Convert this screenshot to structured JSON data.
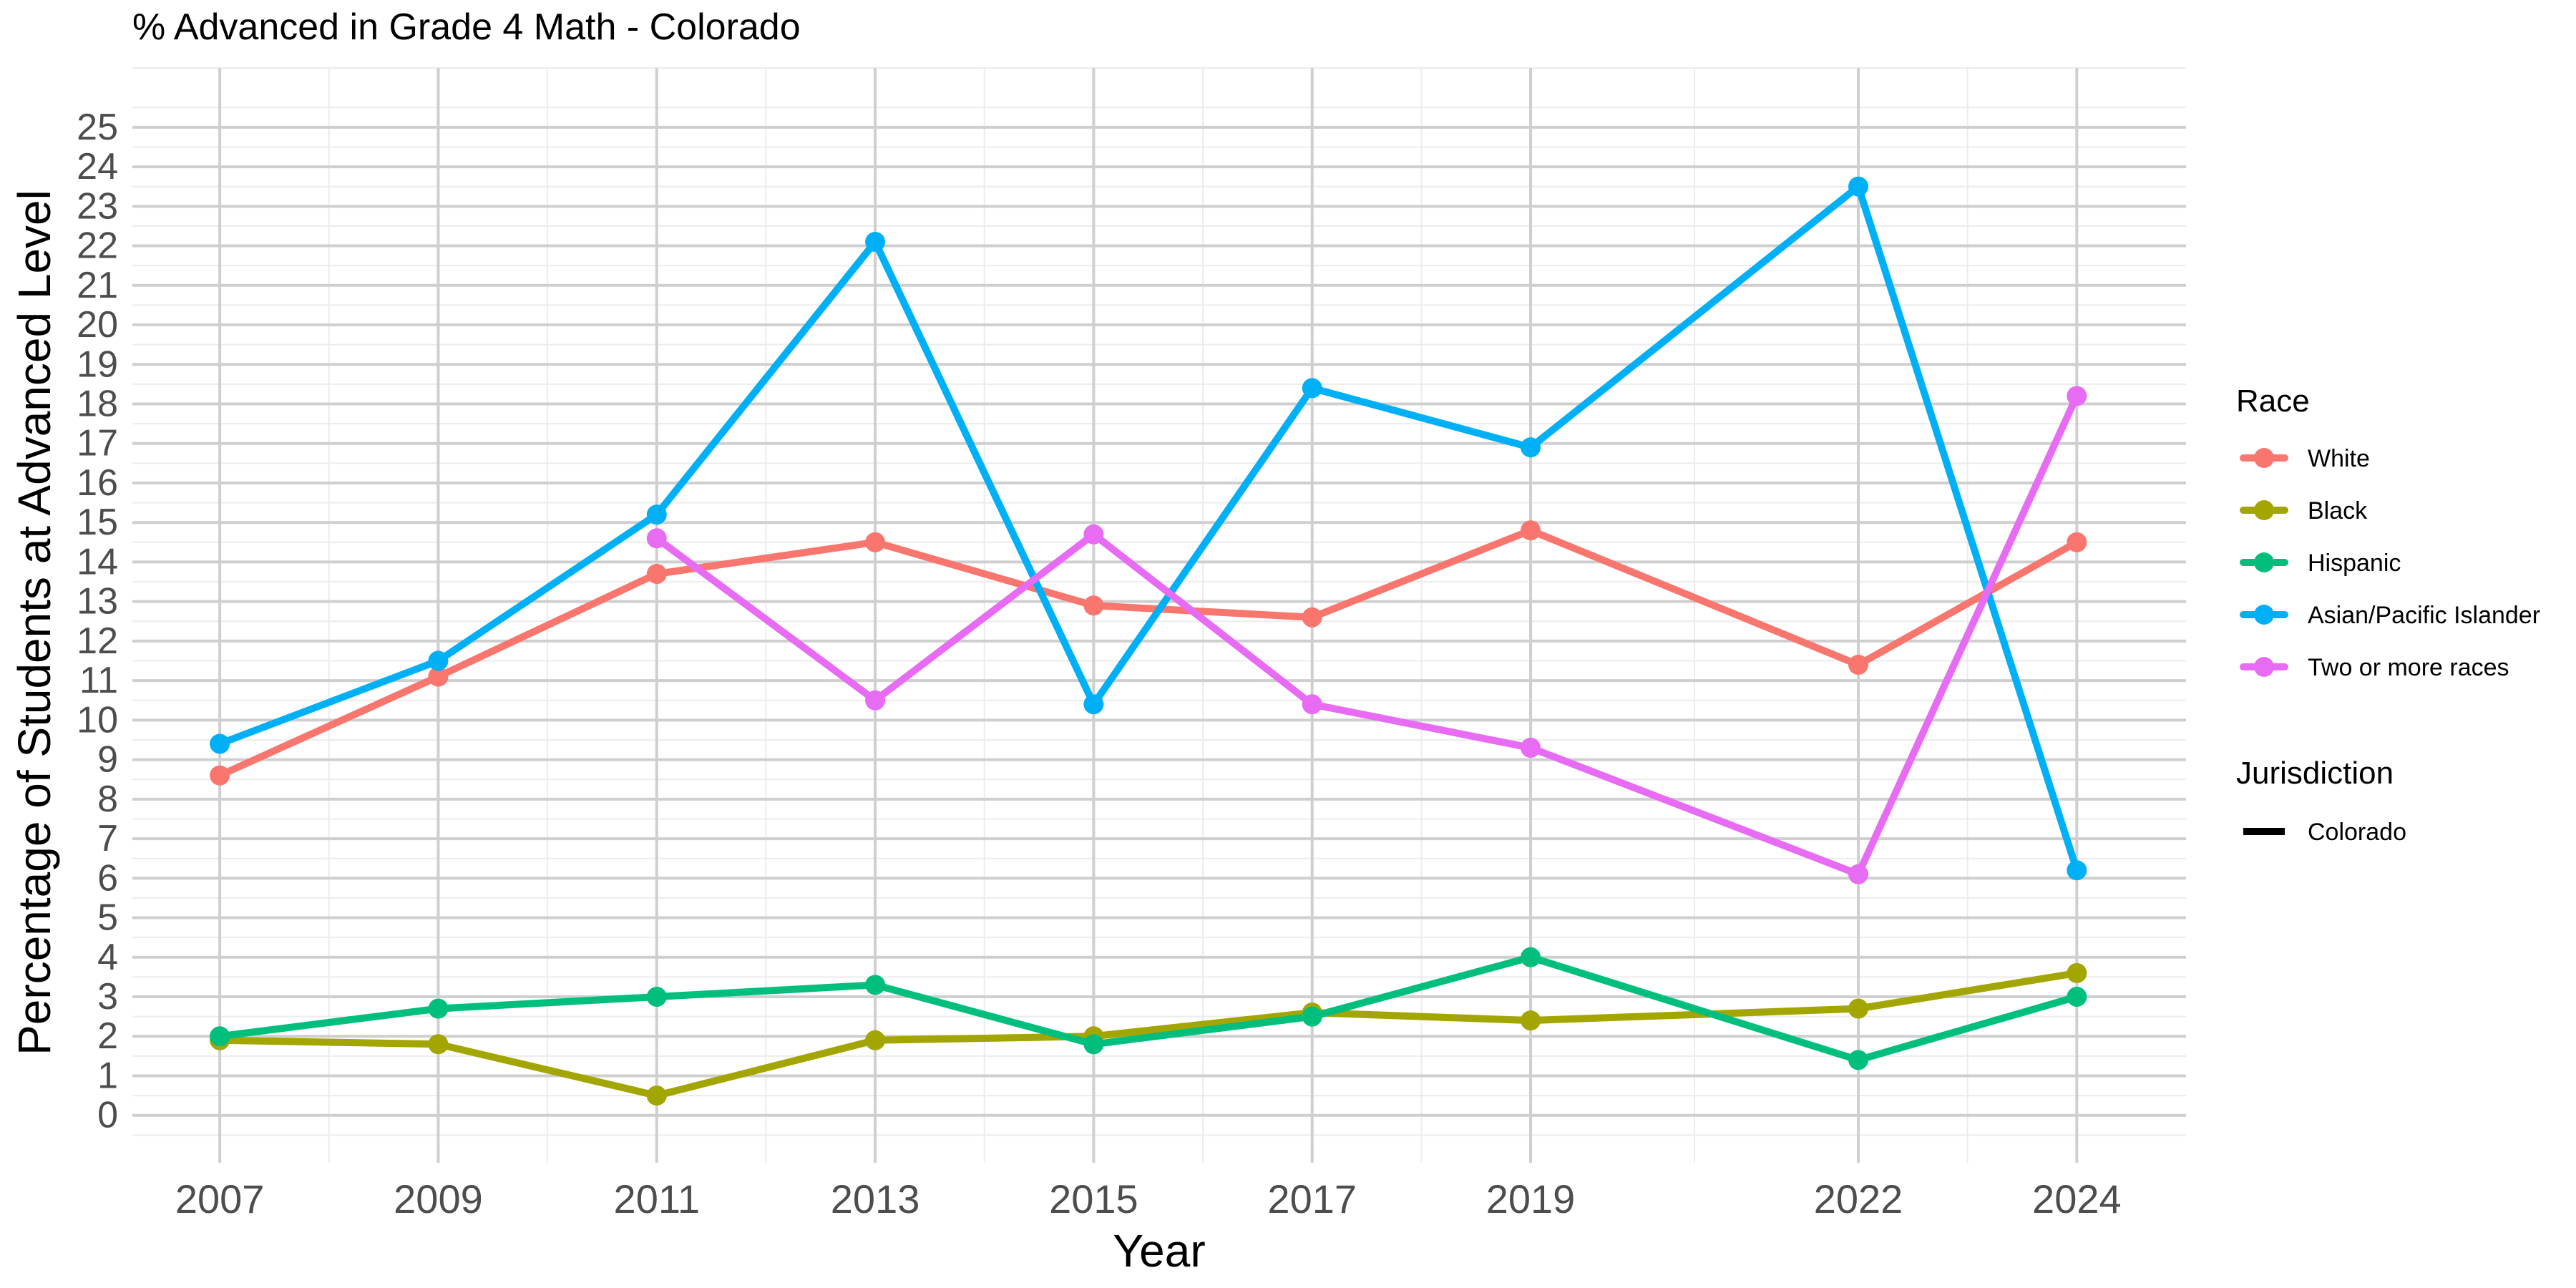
{
  "chart_data": {
    "type": "line",
    "title": "% Advanced in Grade 4 Math - Colorado",
    "xlabel": "Year",
    "ylabel": "Percentage of Students at Advanced Level",
    "x_ticks": [
      "2007",
      "2009",
      "2011",
      "2013",
      "2015",
      "2017",
      "2019",
      "2022",
      "2024"
    ],
    "y_ticks": [
      "0",
      "1",
      "2",
      "3",
      "4",
      "5",
      "6",
      "7",
      "8",
      "9",
      "10",
      "11",
      "12",
      "13",
      "14",
      "15",
      "16",
      "17",
      "18",
      "19",
      "20",
      "21",
      "22",
      "23",
      "24",
      "25"
    ],
    "xlim": [
      2006.2,
      2025.0
    ],
    "ylim": [
      -1.2,
      26.5
    ],
    "grid": true,
    "legend_placement": "right",
    "legend": {
      "title": "Race",
      "jurisdiction_title": "Jurisdiction",
      "jurisdiction_items": [
        {
          "label": "Colorado",
          "color": "#000000"
        }
      ]
    },
    "series": [
      {
        "name": "White",
        "color": "#F8766D",
        "x": [
          2007,
          2009,
          2011,
          2013,
          2015,
          2017,
          2019,
          2022,
          2024
        ],
        "y": [
          8.6,
          11.1,
          13.7,
          14.5,
          12.9,
          12.6,
          14.8,
          11.4,
          14.5
        ]
      },
      {
        "name": "Black",
        "color": "#A3A500",
        "x": [
          2007,
          2009,
          2011,
          2013,
          2015,
          2017,
          2019,
          2022,
          2024
        ],
        "y": [
          1.9,
          1.8,
          0.5,
          1.9,
          2.0,
          2.6,
          2.4,
          2.7,
          3.6
        ]
      },
      {
        "name": "Hispanic",
        "color": "#00BF7D",
        "x": [
          2007,
          2009,
          2011,
          2013,
          2015,
          2017,
          2019,
          2022,
          2024
        ],
        "y": [
          2.0,
          2.7,
          3.0,
          3.3,
          1.8,
          2.5,
          4.0,
          1.4,
          3.0
        ]
      },
      {
        "name": "Asian/Pacific Islander",
        "color": "#00B0F6",
        "x": [
          2007,
          2009,
          2011,
          2013,
          2015,
          2017,
          2019,
          2022,
          2024
        ],
        "y": [
          9.4,
          11.5,
          15.2,
          22.1,
          10.4,
          18.4,
          16.9,
          23.5,
          6.2
        ]
      },
      {
        "name": "Two or more races",
        "color": "#E76BF3",
        "x": [
          2011,
          2013,
          2015,
          2017,
          2019,
          2022,
          2024
        ],
        "y": [
          14.6,
          10.5,
          14.7,
          10.4,
          9.3,
          6.1,
          18.2
        ]
      }
    ]
  }
}
